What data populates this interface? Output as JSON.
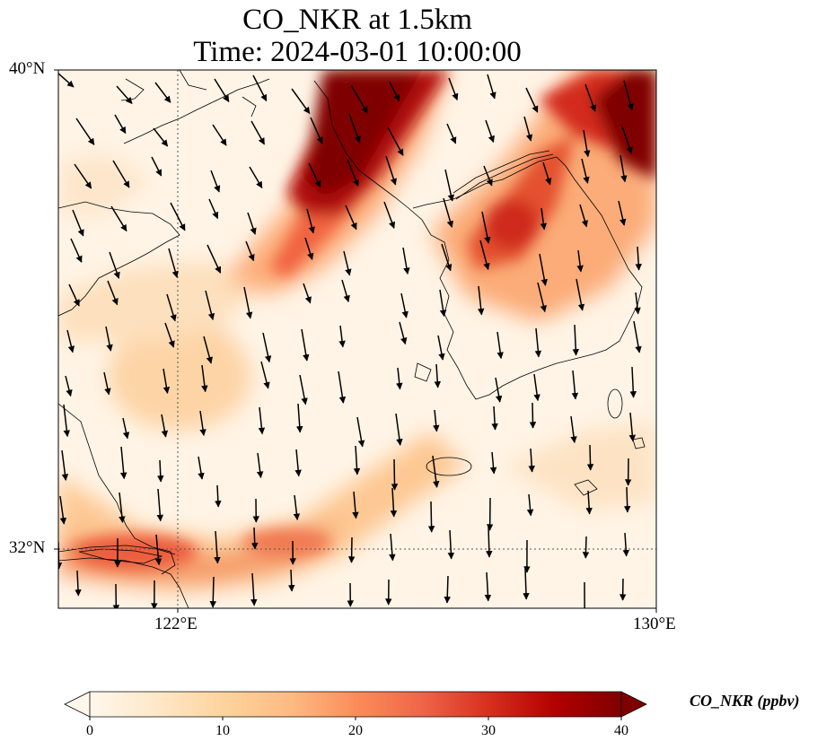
{
  "title": {
    "line1": "CO_NKR at 1.5km",
    "line2": "Time: 2024-03-01 10:00:00"
  },
  "map": {
    "variable": "CO_NKR",
    "height": "1.5km",
    "time": "2024-03-01 10:00:00",
    "extent": {
      "lon": [
        120,
        130
      ],
      "lat": [
        31,
        40
      ]
    },
    "lon_ticks": [
      {
        "value": 122,
        "label": "122°E"
      },
      {
        "value": 130,
        "label": "130°E"
      }
    ],
    "lat_ticks": [
      {
        "value": 40,
        "label": "40°N"
      },
      {
        "value": 32,
        "label": "32°N"
      }
    ],
    "gridlines": "dotted at 122°E and 32°N",
    "features": [
      "coastlines",
      "wind vectors",
      "CO concentration field"
    ]
  },
  "colorbar": {
    "label": "CO_NKR (ppbv)",
    "min": 0,
    "max": 40,
    "extend": "both",
    "colormap": "OrRd",
    "ticks": [
      "0",
      "10",
      "20",
      "30",
      "40"
    ],
    "colors": [
      "#fff7ec",
      "#fee8c8",
      "#fdd49e",
      "#fdbb84",
      "#fc8d59",
      "#ef6548",
      "#d7301f",
      "#b30000",
      "#7f0000"
    ]
  }
}
